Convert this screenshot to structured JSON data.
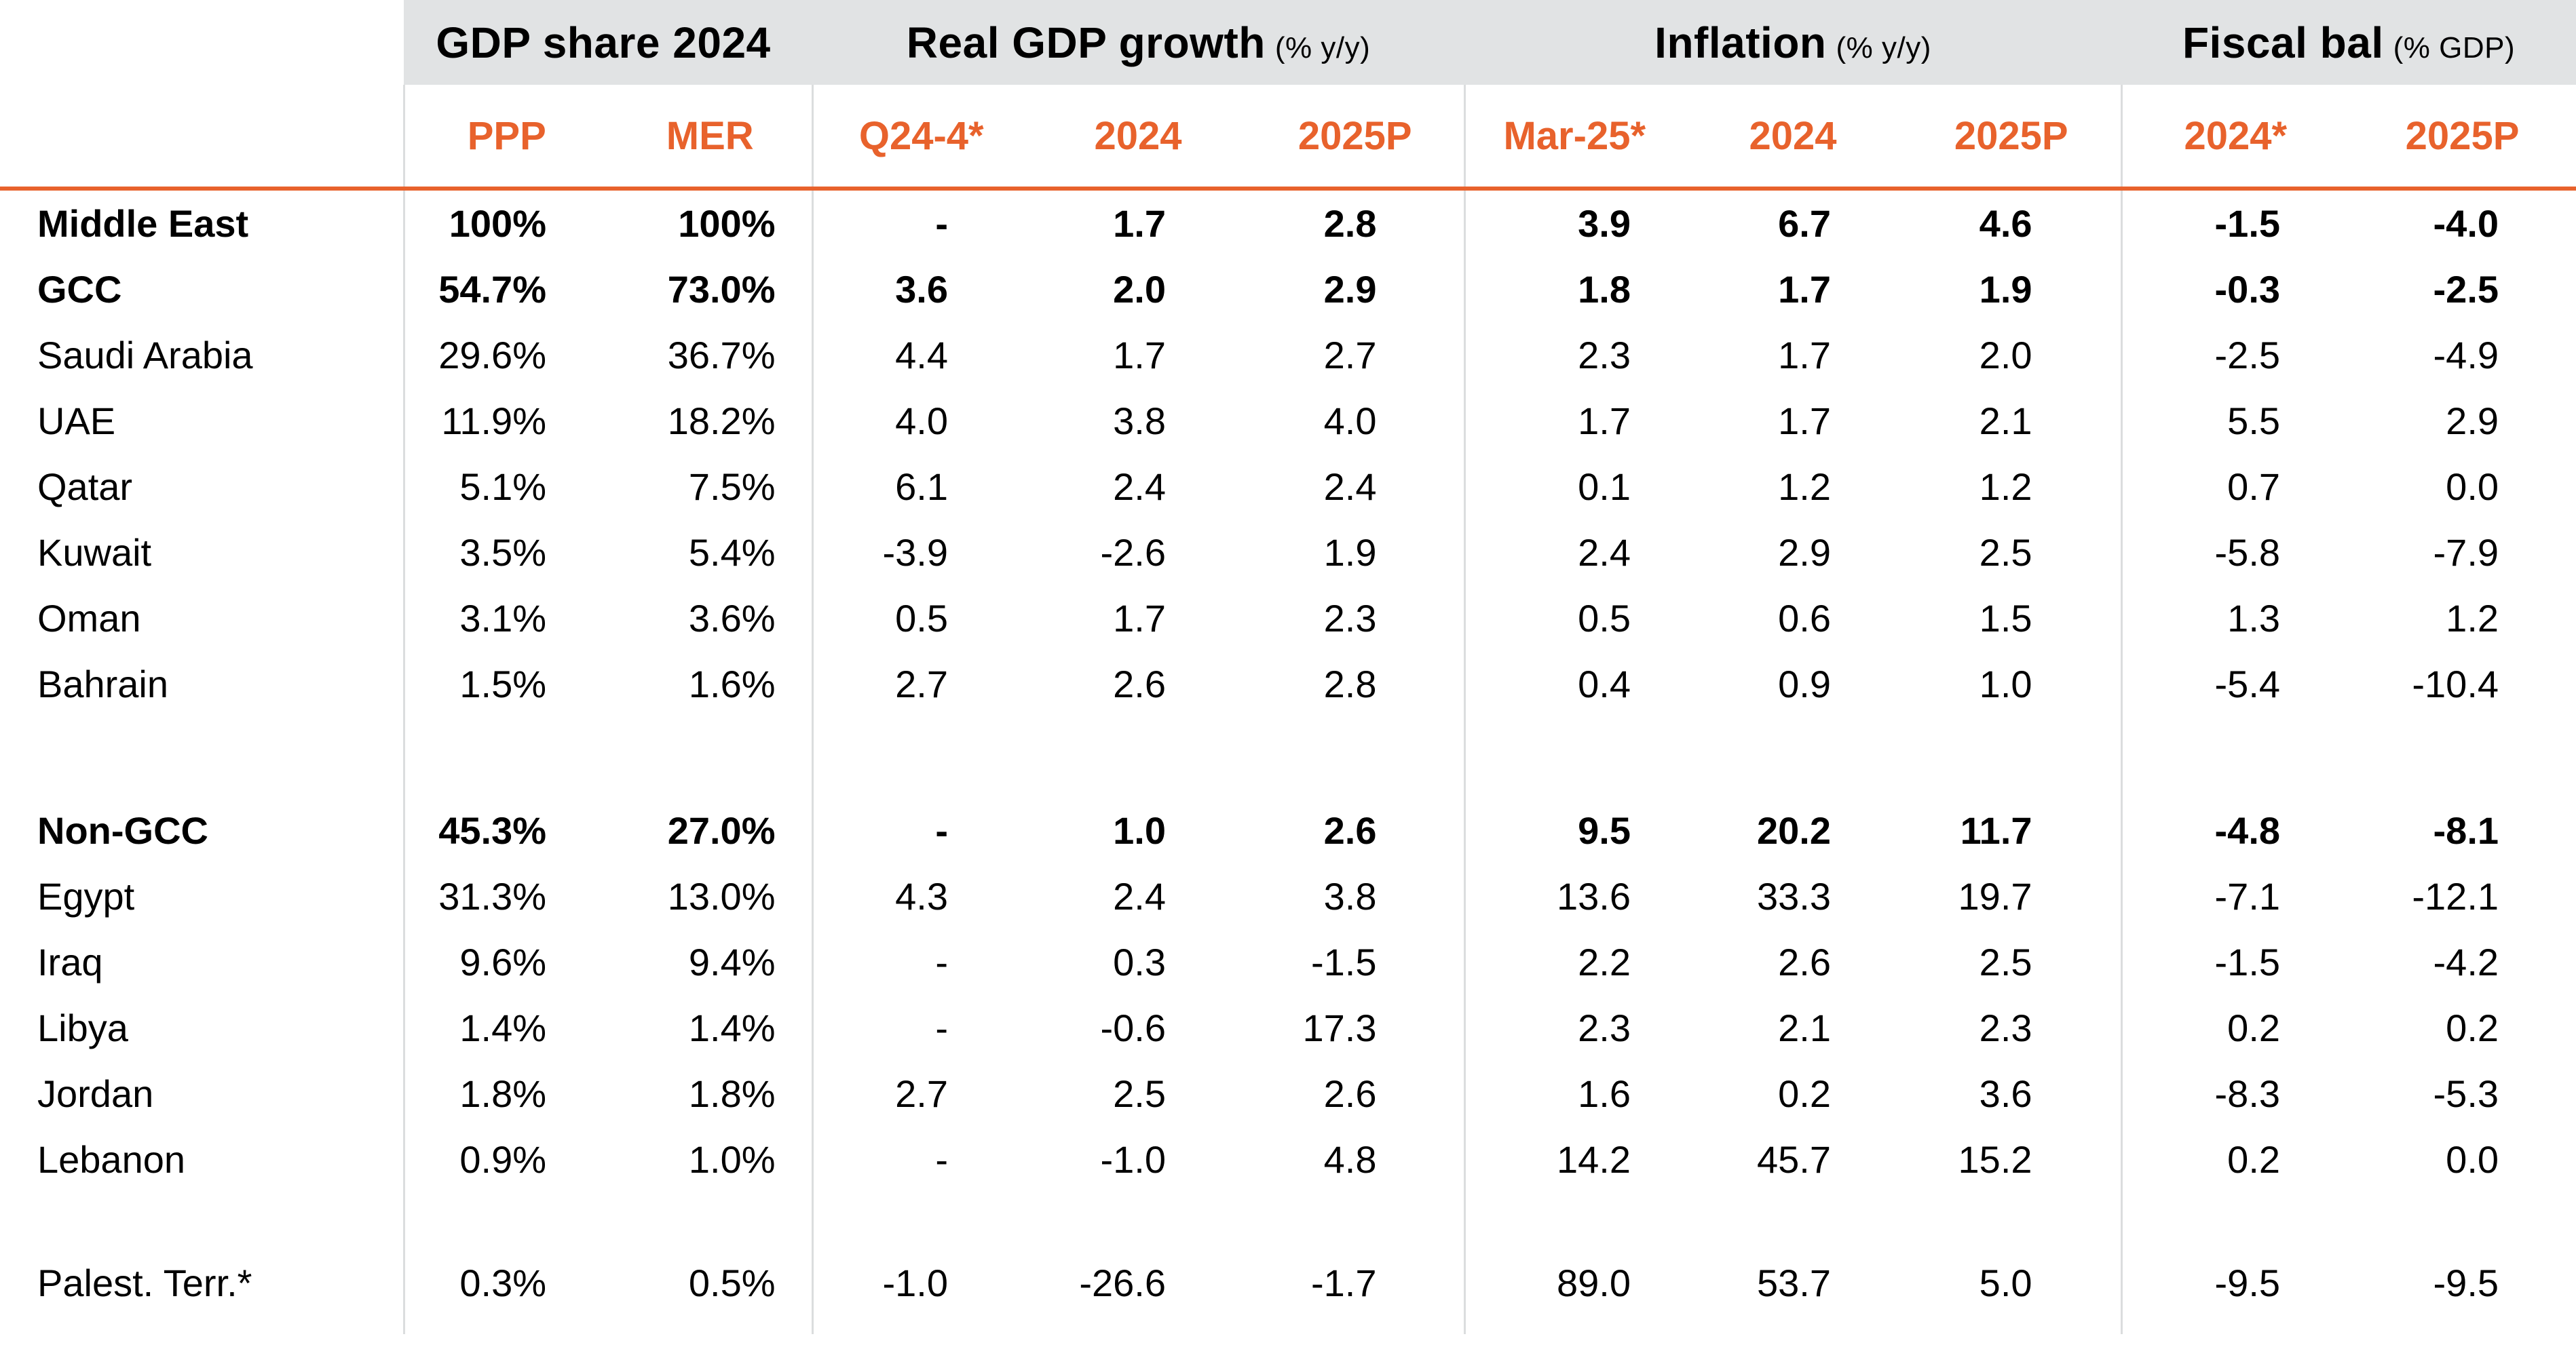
{
  "table": {
    "col_groups": [
      {
        "title": "GDP share 2024",
        "unit": ""
      },
      {
        "title": "Real GDP growth",
        "unit": "(% y/y)"
      },
      {
        "title": "Inflation",
        "unit": "(% y/y)"
      },
      {
        "title": "Fiscal bal",
        "unit": "(% GDP)"
      }
    ],
    "sub_headers": [
      "PPP",
      "MER",
      "Q24-4*",
      "2024",
      "2025P",
      "Mar-25*",
      "2024",
      "2025P",
      "2024*",
      "2025P"
    ],
    "rows": [
      {
        "name": "Middle East",
        "bold": true,
        "values": [
          "100%",
          "100%",
          "-",
          "1.7",
          "2.8",
          "3.9",
          "6.7",
          "4.6",
          "-1.5",
          "-4.0"
        ]
      },
      {
        "name": "GCC",
        "bold": true,
        "values": [
          "54.7%",
          "73.0%",
          "3.6",
          "2.0",
          "2.9",
          "1.8",
          "1.7",
          "1.9",
          "-0.3",
          "-2.5"
        ]
      },
      {
        "name": "Saudi Arabia",
        "bold": false,
        "values": [
          "29.6%",
          "36.7%",
          "4.4",
          "1.7",
          "2.7",
          "2.3",
          "1.7",
          "2.0",
          "-2.5",
          "-4.9"
        ]
      },
      {
        "name": "UAE",
        "bold": false,
        "values": [
          "11.9%",
          "18.2%",
          "4.0",
          "3.8",
          "4.0",
          "1.7",
          "1.7",
          "2.1",
          "5.5",
          "2.9"
        ]
      },
      {
        "name": "Qatar",
        "bold": false,
        "values": [
          "5.1%",
          "7.5%",
          "6.1",
          "2.4",
          "2.4",
          "0.1",
          "1.2",
          "1.2",
          "0.7",
          "0.0"
        ]
      },
      {
        "name": "Kuwait",
        "bold": false,
        "values": [
          "3.5%",
          "5.4%",
          "-3.9",
          "-2.6",
          "1.9",
          "2.4",
          "2.9",
          "2.5",
          "-5.8",
          "-7.9"
        ]
      },
      {
        "name": "Oman",
        "bold": false,
        "values": [
          "3.1%",
          "3.6%",
          "0.5",
          "1.7",
          "2.3",
          "0.5",
          "0.6",
          "1.5",
          "1.3",
          "1.2"
        ]
      },
      {
        "name": "Bahrain",
        "bold": false,
        "values": [
          "1.5%",
          "1.6%",
          "2.7",
          "2.6",
          "2.8",
          "0.4",
          "0.9",
          "1.0",
          "-5.4",
          "-10.4"
        ]
      },
      {
        "spacer": 119
      },
      {
        "name": "Non-GCC",
        "bold": true,
        "values": [
          "45.3%",
          "27.0%",
          "-",
          "1.0",
          "2.6",
          "9.5",
          "20.2",
          "11.7",
          "-4.8",
          "-8.1"
        ]
      },
      {
        "name": "Egypt",
        "bold": false,
        "values": [
          "31.3%",
          "13.0%",
          "4.3",
          "2.4",
          "3.8",
          "13.6",
          "33.3",
          "19.7",
          "-7.1",
          "-12.1"
        ]
      },
      {
        "name": "Iraq",
        "bold": false,
        "values": [
          "9.6%",
          "9.4%",
          "-",
          "0.3",
          "-1.5",
          "2.2",
          "2.6",
          "2.5",
          "-1.5",
          "-4.2"
        ]
      },
      {
        "name": "Libya",
        "bold": false,
        "values": [
          "1.4%",
          "1.4%",
          "-",
          "-0.6",
          "17.3",
          "2.3",
          "2.1",
          "2.3",
          "0.2",
          "0.2"
        ]
      },
      {
        "name": "Jordan",
        "bold": false,
        "values": [
          "1.8%",
          "1.8%",
          "2.7",
          "2.5",
          "2.6",
          "1.6",
          "0.2",
          "3.6",
          "-8.3",
          "-5.3"
        ]
      },
      {
        "name": "Lebanon",
        "bold": false,
        "values": [
          "0.9%",
          "1.0%",
          "-",
          "-1.0",
          "4.8",
          "14.2",
          "45.7",
          "15.2",
          "0.2",
          "0.0"
        ]
      },
      {
        "spacer": 85
      },
      {
        "name": "Palest. Terr.*",
        "bold": false,
        "values": [
          "0.3%",
          "0.5%",
          "-1.0",
          "-26.6",
          "-1.7",
          "89.0",
          "53.7",
          "5.0",
          "-9.5",
          "-9.5"
        ]
      },
      {
        "spacer": 27
      }
    ]
  },
  "colors": {
    "accent_orange": "#E8622C",
    "header_gray": "#E1E3E4",
    "separator_gray": "#DBDDDE",
    "text": "#000000"
  }
}
